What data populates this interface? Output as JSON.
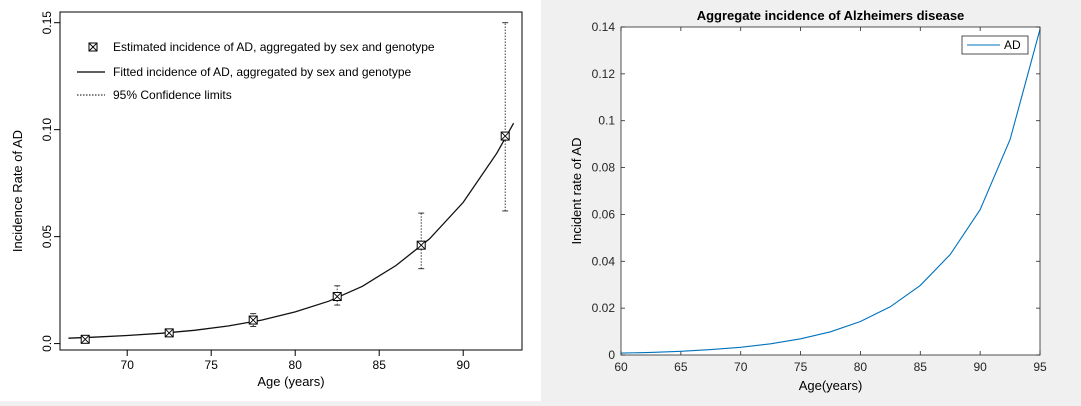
{
  "chart_data": [
    {
      "type": "line",
      "xlabel": "Age (years)",
      "ylabel": "Incidence Rate of AD",
      "xlim": [
        66,
        93.5
      ],
      "ylim": [
        -0.003,
        0.155
      ],
      "x_ticks": [
        70,
        75,
        80,
        85,
        90
      ],
      "y_ticks": [
        0.0,
        0.05,
        0.1,
        0.15
      ],
      "y_tick_labels": [
        "0.0",
        "0.05",
        "0.10",
        "0.15"
      ],
      "legend_position": "top-left",
      "grid": false,
      "legend": [
        {
          "name": "Estimated incidence of AD, aggregated by sex and genotype",
          "kind": "marker"
        },
        {
          "name": "Fitted incidence of AD, aggregated by sex and genotype",
          "kind": "solid"
        },
        {
          "name": "95% Confidence limits",
          "kind": "dotted"
        }
      ],
      "estimated": {
        "x": [
          67.5,
          72.5,
          77.5,
          82.5,
          87.5,
          92.5
        ],
        "y": [
          0.002,
          0.005,
          0.011,
          0.022,
          0.046,
          0.097
        ],
        "lower": [
          0.001,
          0.004,
          0.008,
          0.018,
          0.035,
          0.062
        ],
        "upper": [
          0.003,
          0.006,
          0.014,
          0.027,
          0.061,
          0.15
        ]
      },
      "fitted": {
        "x": [
          66.5,
          68,
          70,
          72,
          74,
          76,
          78,
          80,
          82,
          84,
          86,
          88,
          90,
          92,
          93
        ],
        "y": [
          0.0025,
          0.003,
          0.0038,
          0.0048,
          0.0062,
          0.0082,
          0.011,
          0.0148,
          0.0198,
          0.0268,
          0.0365,
          0.049,
          0.066,
          0.089,
          0.103
        ]
      }
    },
    {
      "type": "line",
      "title": "Aggregate incidence of Alzheimers disease",
      "xlabel": "Age(years)",
      "ylabel": "Incident rate of AD",
      "xlim": [
        60,
        95
      ],
      "ylim": [
        0,
        0.14
      ],
      "x_ticks": [
        60,
        65,
        70,
        75,
        80,
        85,
        90,
        95
      ],
      "y_ticks": [
        0,
        0.02,
        0.04,
        0.06,
        0.08,
        0.1,
        0.12,
        0.14
      ],
      "y_tick_labels": [
        "0",
        "0.02",
        "0.04",
        "0.06",
        "0.08",
        "0.1",
        "0.12",
        "0.14"
      ],
      "legend_position": "top-right",
      "grid": false,
      "series": [
        {
          "name": "AD",
          "color": "#0072bd",
          "x": [
            60,
            62.5,
            65,
            67.5,
            70,
            72.5,
            75,
            77.5,
            80,
            82.5,
            85,
            87.5,
            90,
            92.5,
            95
          ],
          "y": [
            0.0008,
            0.0011,
            0.0016,
            0.0023,
            0.0033,
            0.0048,
            0.0069,
            0.0099,
            0.0143,
            0.0206,
            0.0297,
            0.0429,
            0.062,
            0.092,
            0.139
          ]
        }
      ]
    }
  ]
}
